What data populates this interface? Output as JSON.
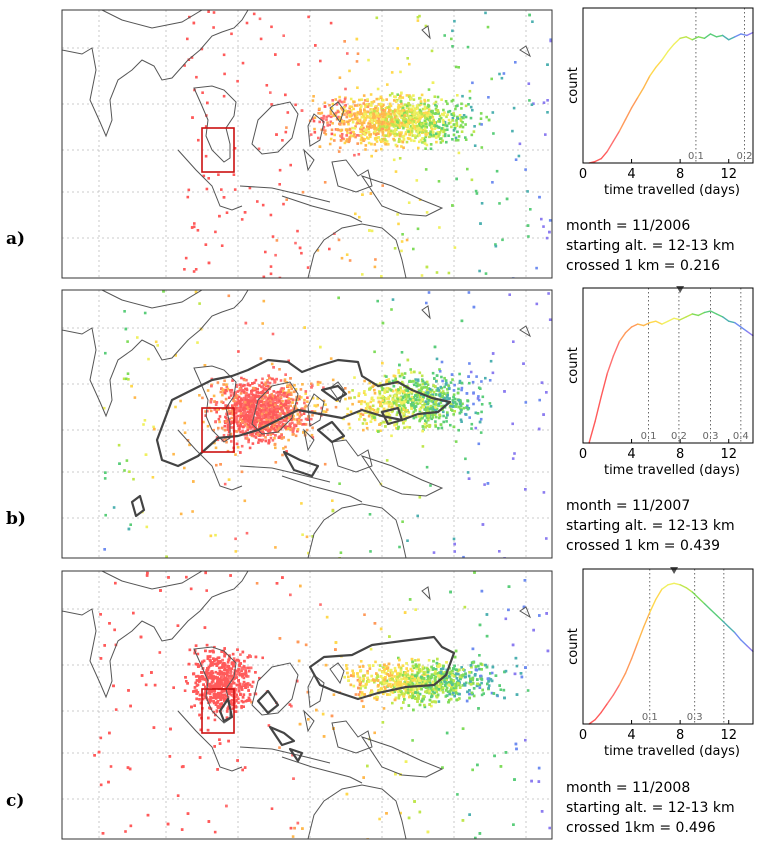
{
  "panels": [
    {
      "label": "a)",
      "info": [
        "month = 11/2006",
        "starting alt. = 12-13 km",
        "crossed 1 km = 0.216"
      ],
      "chart_data": {
        "type": "line",
        "xlabel": "time travelled (days)",
        "ylabel": "count",
        "xlim": [
          0,
          14
        ],
        "xticks": [
          0,
          4,
          8,
          12
        ],
        "grid": false,
        "annotations": [
          {
            "x": 9.3,
            "label": "0.1"
          },
          {
            "x": 13.3,
            "label": "0.2"
          }
        ],
        "x": [
          0.5,
          1,
          1.5,
          2,
          2.5,
          3,
          3.5,
          4,
          4.5,
          5,
          5.5,
          6,
          6.5,
          7,
          7.5,
          8,
          8.5,
          9,
          9.5,
          10,
          10.5,
          11,
          11.5,
          12,
          12.5,
          13,
          13.5,
          14
        ],
        "y": [
          0,
          0.01,
          0.03,
          0.08,
          0.15,
          0.22,
          0.3,
          0.38,
          0.45,
          0.52,
          0.6,
          0.66,
          0.71,
          0.77,
          0.82,
          0.86,
          0.87,
          0.85,
          0.87,
          0.86,
          0.89,
          0.87,
          0.88,
          0.85,
          0.87,
          0.89,
          0.88,
          0.9
        ]
      }
    },
    {
      "label": "b)",
      "info": [
        "month = 11/2007",
        "starting alt. = 12-13 km",
        "crossed 1 km = 0.439"
      ],
      "chart_data": {
        "type": "line",
        "xlabel": "time travelled (days)",
        "ylabel": "count",
        "xlim": [
          0,
          14
        ],
        "xticks": [
          0,
          4,
          8,
          12
        ],
        "grid": false,
        "marker_x": 8,
        "annotations": [
          {
            "x": 5.4,
            "label": "0.1"
          },
          {
            "x": 7.9,
            "label": "0.2"
          },
          {
            "x": 10.5,
            "label": "0.3"
          },
          {
            "x": 13.0,
            "label": "0.4"
          }
        ],
        "x": [
          0.5,
          1,
          1.5,
          2,
          2.5,
          3,
          3.5,
          4,
          4.5,
          5,
          5.5,
          6,
          6.5,
          7,
          7.5,
          8,
          8.5,
          9,
          9.5,
          10,
          10.5,
          11,
          11.5,
          12,
          12.5,
          13,
          13.5,
          14
        ],
        "y": [
          0,
          0.15,
          0.32,
          0.48,
          0.6,
          0.7,
          0.76,
          0.8,
          0.82,
          0.81,
          0.83,
          0.84,
          0.82,
          0.84,
          0.86,
          0.85,
          0.87,
          0.89,
          0.88,
          0.9,
          0.91,
          0.89,
          0.87,
          0.84,
          0.83,
          0.8,
          0.77,
          0.74
        ]
      }
    },
    {
      "label": "c)",
      "info": [
        "month = 11/2008",
        "starting alt. = 12-13 km",
        "crossed 1km = 0.496"
      ],
      "chart_data": {
        "type": "line",
        "xlabel": "time travelled (days)",
        "ylabel": "count",
        "xlim": [
          0,
          14
        ],
        "xticks": [
          0,
          4,
          8,
          12
        ],
        "grid": false,
        "marker_x": 7.5,
        "annotations": [
          {
            "x": 5.5,
            "label": "0.1"
          },
          {
            "x": 9.2,
            "label": "0.3"
          },
          {
            "x": 11.6,
            "label": ""
          }
        ],
        "x": [
          0.5,
          1,
          1.5,
          2,
          2.5,
          3,
          3.5,
          4,
          4.5,
          5,
          5.5,
          6,
          6.5,
          7,
          7.5,
          8,
          8.5,
          9,
          9.5,
          10,
          10.5,
          11,
          11.5,
          12,
          12.5,
          13,
          13.5,
          14
        ],
        "y": [
          0,
          0.03,
          0.08,
          0.14,
          0.2,
          0.27,
          0.35,
          0.45,
          0.56,
          0.67,
          0.77,
          0.86,
          0.93,
          0.96,
          0.97,
          0.96,
          0.94,
          0.91,
          0.87,
          0.83,
          0.79,
          0.75,
          0.71,
          0.67,
          0.63,
          0.58,
          0.54,
          0.5
        ]
      }
    }
  ],
  "colors": {
    "outline": "#555555",
    "box": "#cc1111",
    "contour": "#444444",
    "frame": "#333333"
  }
}
